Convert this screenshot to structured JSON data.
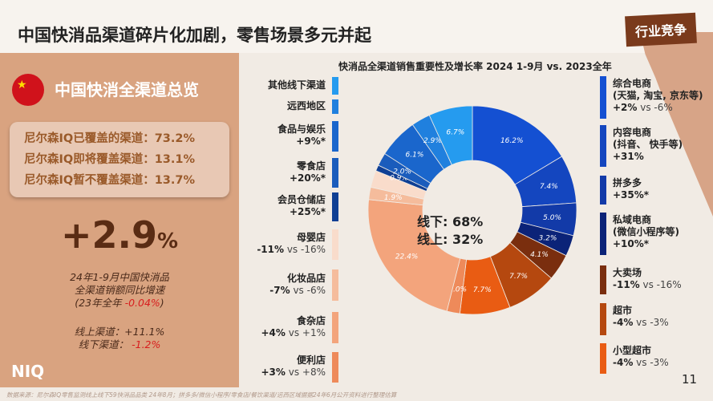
{
  "header": {
    "title": "中国快消品渠道碎片化加剧，零售场景多元并起",
    "tag": "行业竞争"
  },
  "overview": {
    "heading": "中国快消全渠道总览",
    "coverage": [
      "尼尔森IQ已覆盖的渠道：73.2%",
      "尼尔森IQ即将覆盖渠道：13.1%",
      "尼尔森IQ暂不覆盖渠道：13.7%"
    ],
    "growth_value": "+2.9",
    "growth_unit": "%",
    "desc_line1": "24年1-9月中国快消品",
    "desc_line2": "全渠道销额同比增速",
    "desc_line3_prefix": "(23年全年 ",
    "desc_line3_value": "-0.04%",
    "desc_line3_suffix": ")",
    "online_label": "线上渠道：",
    "online_value": "+11.1%",
    "offline_label": "线下渠道：",
    "offline_value": "-1.2%"
  },
  "logo": "NIQ",
  "footer": "数据来源：尼尔森IQ零售监测线上线下59快消品品类 24年8月；拼多多/微信小程序/零食店/餐饮渠道/远西区域据据24年6月公开资料进行整理估算",
  "page_number": "11",
  "chart_data": {
    "type": "pie",
    "title": "快消品全渠道销售重要性及增长率 2024 1-9月 vs. 2023全年",
    "center": [
      "线下: 68%",
      "线上: 32%"
    ],
    "segments": [
      {
        "name": "综合电商",
        "label": "16.2%",
        "value": 16.2,
        "color": "#1450d2"
      },
      {
        "name": "内容电商",
        "label": "7.4%",
        "value": 7.4,
        "color": "#1446bf"
      },
      {
        "name": "拼多多",
        "label": "5.0%",
        "value": 5.0,
        "color": "#123aa8"
      },
      {
        "name": "私域电商",
        "label": "3.2%",
        "value": 3.2,
        "color": "#0b2378"
      },
      {
        "name": "大卖场",
        "label": "4.1%",
        "value": 4.1,
        "color": "#7a2e0e"
      },
      {
        "name": "超市",
        "label": "7.7%",
        "value": 7.7,
        "color": "#b5480f"
      },
      {
        "name": "小型超市",
        "label": "7.7%",
        "value": 7.7,
        "color": "#e95c13"
      },
      {
        "name": "便利店",
        "label": "2.0%",
        "value": 2.0,
        "color": "#ee8a5a"
      },
      {
        "name": "食杂店",
        "label": "22.4%",
        "value": 22.4,
        "color": "#f3a47c"
      },
      {
        "name": "化妆品店",
        "label": "1.9%",
        "value": 1.9,
        "color": "#f5bc9c"
      },
      {
        "name": "母婴店",
        "label": "",
        "value": 2.6,
        "color": "#f9dccb"
      },
      {
        "name": "会员仓储店",
        "label": "0.9%",
        "value": 0.9,
        "color": "#0f3f94"
      },
      {
        "name": "零食店",
        "label": "2.0%",
        "value": 2.0,
        "color": "#1a5cbc"
      },
      {
        "name": "食品与娱乐",
        "label": "6.1%",
        "value": 6.1,
        "color": "#1a66cc"
      },
      {
        "name": "远西地区",
        "label": "2.9%",
        "value": 2.9,
        "color": "#2080de"
      },
      {
        "name": "其他线下渠道",
        "label": "6.7%",
        "value": 6.7,
        "color": "#259bef"
      }
    ]
  },
  "left_legend": [
    {
      "name": "其他线下渠道",
      "growth": "",
      "vs": "",
      "color": "#259bef"
    },
    {
      "name": "远西地区",
      "growth": "",
      "vs": "",
      "color": "#2080de"
    },
    {
      "name": "食品与娱乐",
      "growth": "+9%*",
      "vs": "",
      "color": "#1a66cc"
    },
    {
      "name": "零食店",
      "growth": "+20%*",
      "vs": "",
      "color": "#1a5cbc"
    },
    {
      "name": "会员仓储店",
      "growth": "+25%*",
      "vs": "",
      "color": "#0f3f94"
    },
    {
      "name": "母婴店",
      "growth": "-11%",
      "vs": " vs -16%",
      "color": "#f9dccb"
    },
    {
      "name": "化妆品店",
      "growth": "-7%",
      "vs": " vs -6%",
      "color": "#f5bc9c"
    },
    {
      "name": "食杂店",
      "growth": "+4%",
      "vs": " vs +1%",
      "color": "#f3a47c"
    },
    {
      "name": "便利店",
      "growth": "+3%",
      "vs": " vs +8%",
      "color": "#ee8a5a"
    }
  ],
  "right_legend": [
    {
      "name": "综合电商",
      "sub": "(天猫, 淘宝, 京东等)",
      "growth": "+2%",
      "vs": " vs -6%",
      "color": "#1450d2"
    },
    {
      "name": "内容电商",
      "sub": "(抖音、 快手等)",
      "growth": "+31%",
      "vs": "",
      "color": "#1446bf"
    },
    {
      "name": "拼多多",
      "sub": "",
      "growth": "+35%*",
      "vs": "",
      "color": "#123aa8"
    },
    {
      "name": "私域电商",
      "sub": "(微信小程序等)",
      "growth": "+10%*",
      "vs": "",
      "color": "#0b2378"
    },
    {
      "name": "大卖场",
      "sub": "",
      "growth": "-11%",
      "vs": " vs -16%",
      "color": "#7a2e0e"
    },
    {
      "name": "超市",
      "sub": "",
      "growth": "-4%",
      "vs": " vs -3%",
      "color": "#b5480f"
    },
    {
      "name": "小型超市",
      "sub": "",
      "growth": "-4%",
      "vs": " vs -3%",
      "color": "#e95c13"
    }
  ]
}
